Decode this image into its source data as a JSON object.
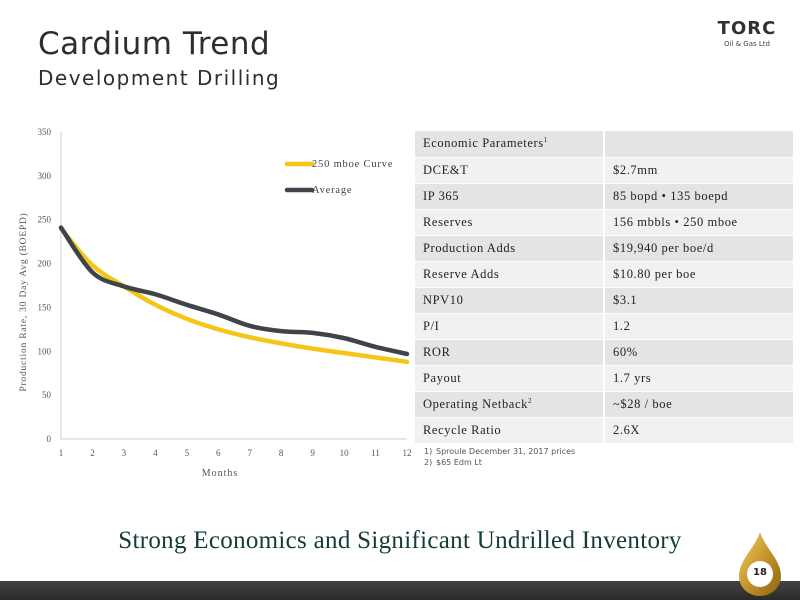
{
  "header": {
    "title": "Cardium Trend",
    "subtitle": "Development Drilling"
  },
  "logo": {
    "word": "TORC",
    "tagline": "Oil & Gas Ltd"
  },
  "chart_data": {
    "type": "line",
    "title": "",
    "xlabel": "Months",
    "ylabel": "Production Rate, 30 Day Avg (BOEPD)",
    "x": [
      1,
      2,
      3,
      4,
      5,
      6,
      7,
      8,
      9,
      10,
      11,
      12
    ],
    "xlim": [
      1,
      12
    ],
    "ylim": [
      0,
      350
    ],
    "y_ticks": [
      0,
      50,
      100,
      150,
      200,
      250,
      300,
      350
    ],
    "x_ticks": [
      1,
      2,
      3,
      4,
      5,
      6,
      7,
      8,
      9,
      10,
      11,
      12
    ],
    "grid": false,
    "legend": "top-right",
    "series": [
      {
        "name": "250 mboe Curve",
        "color": "#f5c518",
        "values": [
          240,
          198,
          174,
          153,
          137,
          125,
          116,
          109,
          103,
          98,
          93,
          88
        ]
      },
      {
        "name": "Average",
        "color": "#3e4449",
        "values": [
          241,
          190,
          174,
          165,
          153,
          142,
          129,
          123,
          121,
          115,
          105,
          97
        ]
      }
    ]
  },
  "table": {
    "header": {
      "label": "Economic Parameters",
      "sup": "1"
    },
    "rows": [
      {
        "label": "DCE&T",
        "value": "$2.7mm"
      },
      {
        "label": "IP 365",
        "value": "85 bopd  •  135 boepd"
      },
      {
        "label": "Reserves",
        "value": "156 mbbls • 250 mboe"
      },
      {
        "label": "Production Adds",
        "value": "$19,940 per boe/d"
      },
      {
        "label": "Reserve Adds",
        "value": "$10.80 per boe"
      },
      {
        "label": "NPV10",
        "value": "$3.1"
      },
      {
        "label": "P/I",
        "value": "1.2"
      },
      {
        "label": "ROR",
        "value": "60%"
      },
      {
        "label": "Payout",
        "value": "1.7 yrs"
      },
      {
        "label": "Operating Netback",
        "label_sup": "2",
        "value": "~$28 / boe"
      },
      {
        "label": "Recycle Ratio",
        "value": "2.6X"
      }
    ]
  },
  "footnotes": [
    {
      "num": "1)",
      "text": "Sproule December 31, 2017 prices"
    },
    {
      "num": "2)",
      "text": "$65 Edm Lt"
    }
  ],
  "tagline": "Strong Economics and Significant Undrilled Inventory",
  "page_number": "18",
  "colors": {
    "accent": "#f5c518",
    "dark": "#3e4449",
    "tagline": "#143a3a"
  }
}
